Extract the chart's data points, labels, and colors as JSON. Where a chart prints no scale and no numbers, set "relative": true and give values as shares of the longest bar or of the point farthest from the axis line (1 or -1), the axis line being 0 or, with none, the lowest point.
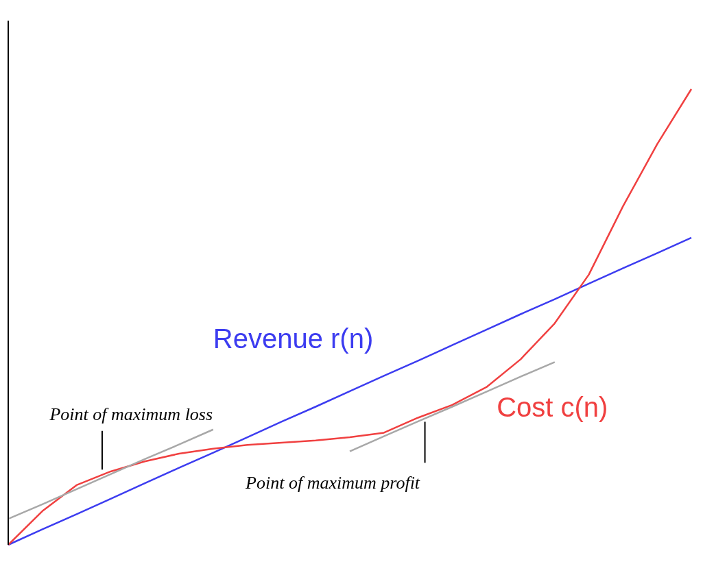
{
  "chart_data": {
    "type": "line",
    "relative": true,
    "categories": [
      null,
      null,
      null,
      null,
      null,
      null,
      null,
      null,
      null,
      null,
      null,
      null,
      null,
      null,
      null,
      null,
      null,
      null,
      null,
      null,
      null
    ],
    "series": [
      {
        "name": "Revenue r(n)",
        "color": "#3c3cf0",
        "values": [
          0,
          0.034,
          0.067,
          0.101,
          0.135,
          0.169,
          0.202,
          0.236,
          0.27,
          0.303,
          0.337,
          0.371,
          0.404,
          0.438,
          0.472,
          0.506,
          0.539,
          0.573,
          0.607,
          0.64,
          0.674
        ]
      },
      {
        "name": "Cost c(n)",
        "color": "#f04040",
        "values": [
          0,
          0.074,
          0.131,
          0.161,
          0.183,
          0.2,
          0.211,
          0.219,
          0.224,
          0.229,
          0.236,
          0.246,
          0.279,
          0.307,
          0.346,
          0.407,
          0.486,
          0.593,
          0.743,
          0.879,
          1
        ]
      },
      {
        "color": "#a8a8a8",
        "values": [
          0.057,
          0.089,
          0.122,
          0.155,
          0.188,
          0.22,
          0.253,
          null,
          null,
          null,
          null,
          null,
          null,
          null,
          null,
          null,
          null,
          null,
          null,
          null,
          null
        ]
      },
      {
        "color": "#a8a8a8",
        "values": [
          null,
          null,
          null,
          null,
          null,
          null,
          null,
          null,
          null,
          null,
          0.205,
          0.238,
          0.271,
          0.303,
          0.336,
          0.369,
          0.401,
          null,
          null,
          null,
          null
        ]
      }
    ],
    "annotations": [
      "Point of maximum loss",
      "Point of maximum profit"
    ],
    "marker": "none",
    "line_style": "solid"
  }
}
